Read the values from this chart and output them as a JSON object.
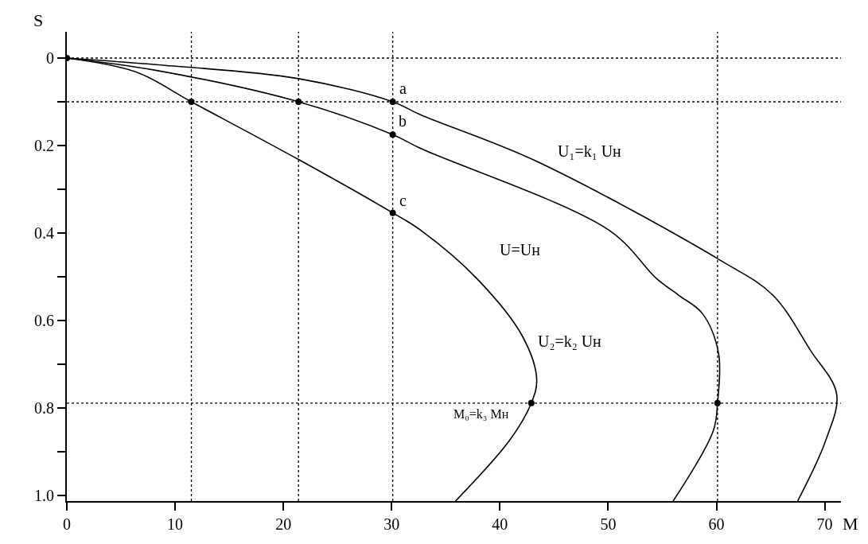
{
  "chart_data": {
    "type": "line",
    "xlabel": "M",
    "ylabel": "S",
    "series": [
      {
        "color": "#000000",
        "x": [
          0,
          8.2,
          21.4,
          30.1,
          32.7,
          43.3,
          60.4,
          65.2,
          68.7,
          71.1,
          70.1,
          67.5
        ],
        "values": [
          0,
          0.015,
          0.047,
          0.1,
          0.13,
          0.235,
          0.463,
          0.542,
          0.669,
          0.768,
          0.874,
          1.013
        ]
      },
      {
        "color": "#000000",
        "x": [
          0,
          8.2,
          21.4,
          30.1,
          32.7,
          50.1,
          54.5,
          56.5,
          58.7,
          60.2,
          60.1,
          59.7,
          56.0
        ],
        "values": [
          0,
          0.028,
          0.1,
          0.175,
          0.207,
          0.394,
          0.505,
          0.542,
          0.584,
          0.676,
          0.789,
          0.853,
          1.013
        ]
      },
      {
        "color": "#000000",
        "x": [
          0,
          6.4,
          11.5,
          21.4,
          30.1,
          32.7,
          37.9,
          42.1,
          43.4,
          42.9,
          40.9,
          35.9
        ],
        "values": [
          0,
          0.032,
          0.1,
          0.232,
          0.354,
          0.394,
          0.505,
          0.637,
          0.734,
          0.789,
          0.874,
          1.013
        ]
      },
      {
        "type": "scatter",
        "marker": "circle",
        "color": "#000000",
        "x": [
          0,
          11.5,
          21.4,
          30.1,
          30.1,
          30.1,
          42.9,
          60.1
        ],
        "values": [
          0,
          0.1,
          0.1,
          0.1,
          0.175,
          0.354,
          0.789,
          0.789
        ]
      }
    ],
    "marker": "none",
    "line_style": "solid",
    "grid": false,
    "xlim": [
      0,
      71.5
    ],
    "ylim": [
      1.013,
      -0.06
    ],
    "xticks": [
      0,
      10,
      20,
      30,
      40,
      50,
      60,
      70
    ],
    "yticks": [
      0,
      {
        "value": 0.1,
        "label": null
      },
      0.2,
      {
        "value": 0.3,
        "label": null
      },
      0.4,
      {
        "value": 0.5,
        "label": null
      },
      0.6,
      {
        "value": 0.7,
        "label": null
      },
      0.8,
      {
        "value": 0.9,
        "label": null
      },
      {
        "value": 1,
        "label": "1.0"
      }
    ],
    "ref_lines": [
      {
        "axis": "y",
        "value": 0,
        "color": "#000000",
        "line_style": "dotted"
      },
      {
        "axis": "y",
        "value": 0.1,
        "color": "#000000",
        "line_style": "dotted"
      },
      {
        "axis": "y",
        "value": 0.789,
        "color": "#000000",
        "line_style": "dotted"
      },
      {
        "axis": "x",
        "value": 11.5,
        "color": "#000000",
        "line_style": "dotted"
      },
      {
        "axis": "x",
        "value": 21.4,
        "color": "#000000",
        "line_style": "dotted"
      },
      {
        "axis": "x",
        "value": 30.1,
        "color": "#000000",
        "line_style": "dotted"
      },
      {
        "axis": "x",
        "value": 60.1,
        "color": "#000000",
        "line_style": "dotted"
      }
    ],
    "annotations": [
      "a",
      "b",
      "c",
      "U₁=k₁ Uн",
      "U=Uн",
      "U₂=k₂ Uн",
      "M₀=k₃ Mн"
    ]
  }
}
